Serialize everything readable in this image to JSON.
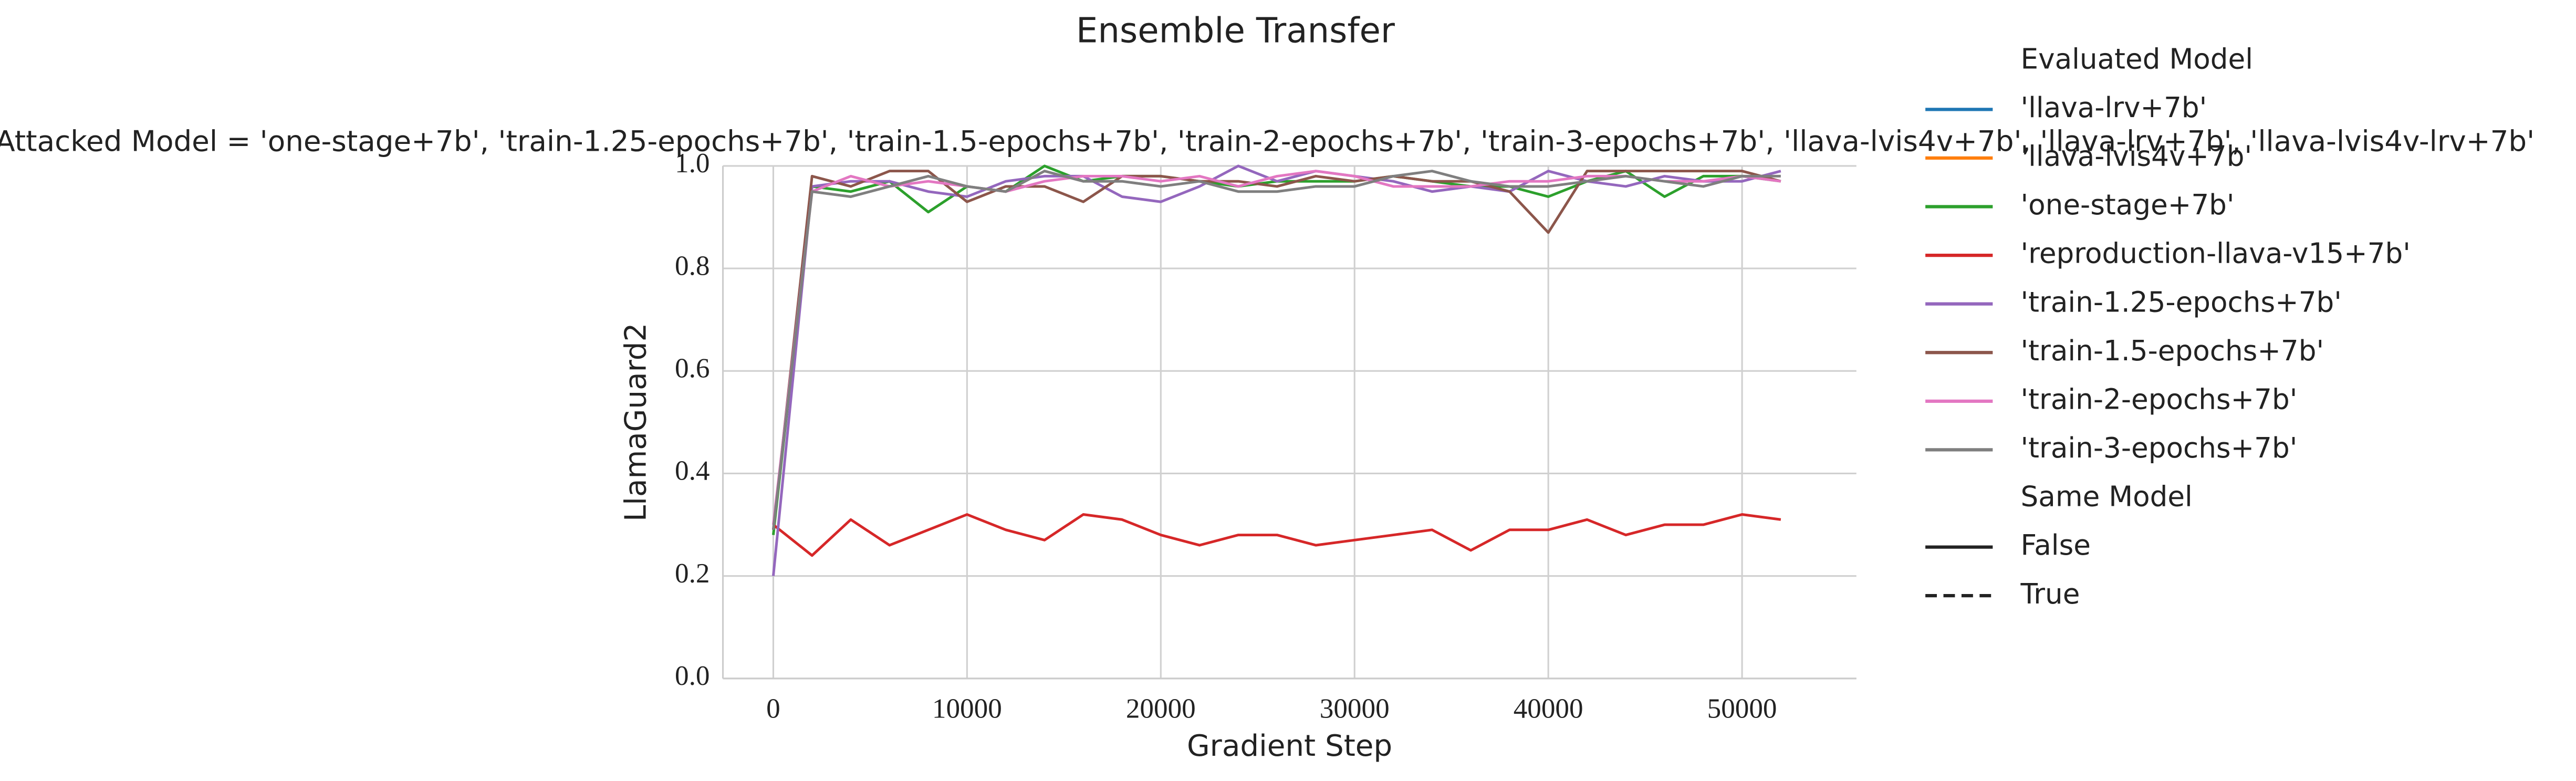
{
  "chart_data": {
    "type": "line",
    "title": "Ensemble Transfer",
    "subtitle": "Attacked Model = 'one-stage+7b', 'train-1.25-epochs+7b', 'train-1.5-epochs+7b', 'train-2-epochs+7b', 'train-3-epochs+7b', 'llava-lvis4v+7b', 'llava-lrv+7b', 'llava-lvis4v-lrv+7b'",
    "x_label": "Gradient Step",
    "y_label": "LlamaGuard2",
    "xlim": [
      -2600,
      55900
    ],
    "xticks": [
      0,
      10000,
      20000,
      30000,
      40000,
      50000
    ],
    "ylim": [
      0,
      1
    ],
    "yticks": [
      {
        "value": 0,
        "label": "0.0"
      },
      0.2,
      0.4,
      0.6,
      0.8,
      {
        "value": 1,
        "label": "1.0"
      }
    ],
    "grid": true,
    "legend": {
      "title": "Evaluated Model",
      "style_title": "Same Model",
      "styles": [
        {
          "name": "False",
          "dash": "solid"
        },
        {
          "name": "True",
          "dash": "dashed"
        }
      ]
    },
    "x": [
      0,
      2000,
      4000,
      6000,
      8000,
      10000,
      12000,
      14000,
      16000,
      18000,
      20000,
      22000,
      24000,
      26000,
      28000,
      30000,
      32000,
      34000,
      36000,
      38000,
      40000,
      42000,
      44000,
      46000,
      48000,
      50000,
      52000
    ],
    "series": [
      {
        "name": "'llava-lrv+7b'",
        "color": "#1f77b4",
        "values": [
          null,
          null,
          null,
          null,
          null,
          null,
          null,
          null,
          null,
          null,
          null,
          null,
          null,
          null,
          null,
          null,
          null,
          null,
          null,
          null,
          null,
          null,
          null,
          null,
          null,
          null,
          null
        ]
      },
      {
        "name": "'llava-lvis4v+7b'",
        "color": "#ff7f0e",
        "values": [
          null,
          null,
          null,
          null,
          null,
          null,
          null,
          null,
          null,
          null,
          null,
          null,
          null,
          null,
          null,
          null,
          null,
          null,
          null,
          null,
          null,
          null,
          null,
          null,
          null,
          null,
          null
        ]
      },
      {
        "name": "'one-stage+7b'",
        "color": "#2ca02c",
        "values": [
          0.28,
          0.96,
          0.95,
          0.97,
          0.91,
          0.96,
          0.95,
          1.0,
          0.97,
          0.98,
          0.98,
          0.97,
          0.96,
          0.97,
          0.97,
          0.97,
          0.98,
          0.97,
          0.96,
          0.96,
          0.94,
          0.97,
          0.99,
          0.94,
          0.98,
          0.98,
          0.97
        ]
      },
      {
        "name": "'reproduction-llava-v15+7b'",
        "color": "#d62728",
        "values": [
          0.3,
          0.24,
          0.31,
          0.26,
          0.29,
          0.32,
          0.29,
          0.27,
          0.32,
          0.31,
          0.28,
          0.26,
          0.28,
          0.28,
          0.26,
          0.27,
          0.28,
          0.29,
          0.25,
          0.29,
          0.29,
          0.31,
          0.28,
          0.3,
          0.3,
          0.32,
          0.31
        ]
      },
      {
        "name": "'train-1.25-epochs+7b'",
        "color": "#9467bd",
        "values": [
          0.2,
          0.96,
          0.97,
          0.97,
          0.95,
          0.94,
          0.97,
          0.98,
          0.98,
          0.94,
          0.93,
          0.96,
          1.0,
          0.97,
          0.99,
          0.98,
          0.97,
          0.95,
          0.96,
          0.95,
          0.99,
          0.97,
          0.96,
          0.98,
          0.97,
          0.97,
          0.99
        ]
      },
      {
        "name": "'train-1.5-epochs+7b'",
        "color": "#8c564b",
        "values": [
          0.29,
          0.98,
          0.96,
          0.99,
          0.99,
          0.93,
          0.96,
          0.96,
          0.93,
          0.98,
          0.98,
          0.97,
          0.97,
          0.96,
          0.98,
          0.97,
          0.98,
          0.97,
          0.97,
          0.95,
          0.87,
          0.99,
          0.99,
          0.99,
          0.99,
          0.99,
          0.97
        ]
      },
      {
        "name": "'train-2-epochs+7b'",
        "color": "#e377c2",
        "values": [
          0.3,
          0.95,
          0.98,
          0.96,
          0.97,
          0.96,
          0.95,
          0.97,
          0.98,
          0.98,
          0.97,
          0.98,
          0.96,
          0.98,
          0.99,
          0.98,
          0.96,
          0.96,
          0.96,
          0.97,
          0.97,
          0.98,
          0.98,
          0.97,
          0.97,
          0.98,
          0.97
        ]
      },
      {
        "name": "'train-3-epochs+7b'",
        "color": "#7f7f7f",
        "values": [
          0.29,
          0.95,
          0.94,
          0.96,
          0.98,
          0.96,
          0.95,
          0.99,
          0.97,
          0.97,
          0.96,
          0.97,
          0.95,
          0.95,
          0.96,
          0.96,
          0.98,
          0.99,
          0.97,
          0.96,
          0.96,
          0.97,
          0.98,
          0.97,
          0.96,
          0.98,
          0.98
        ]
      }
    ]
  }
}
